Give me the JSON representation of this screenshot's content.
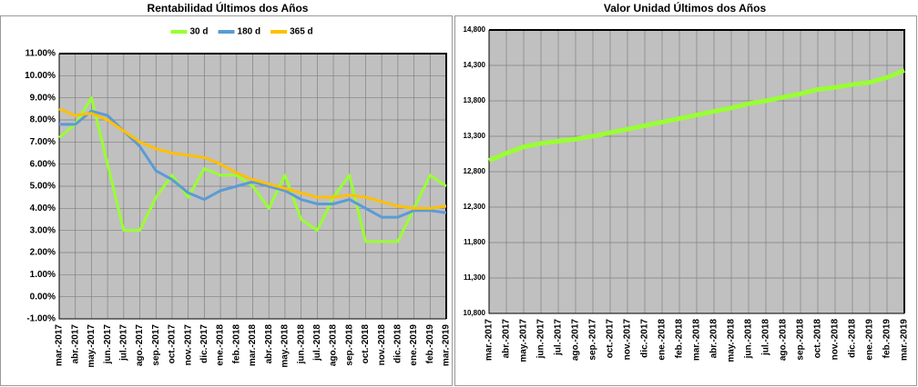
{
  "chart_data": [
    {
      "type": "line",
      "title": "Rentabilidad Últimos dos Años",
      "categories": [
        "mar.-2017",
        "abr.-2017",
        "may.-2017",
        "jun.-2017",
        "jul.-2017",
        "ago.-2017",
        "sep.-2017",
        "oct.-2017",
        "nov.-2017",
        "dic.-2017",
        "ene.-2018",
        "feb.-2018",
        "mar.-2018",
        "abr.-2018",
        "may.-2018",
        "jun.-2018",
        "jul.-2018",
        "ago.-2018",
        "sep.-2018",
        "oct.-2018",
        "nov.-2018",
        "dic.-2018",
        "ene.-2019",
        "feb.-2019",
        "mar.-2019"
      ],
      "series": [
        {
          "name": "30 d",
          "color": "#99ff33",
          "values": [
            7.2,
            7.8,
            9.0,
            6.0,
            3.0,
            3.0,
            4.5,
            5.5,
            4.5,
            5.8,
            5.5,
            5.5,
            5.0,
            4.0,
            5.5,
            3.5,
            3.0,
            4.5,
            5.5,
            2.5,
            2.5,
            2.5,
            4.0,
            5.5,
            5.0
          ]
        },
        {
          "name": "180 d",
          "color": "#5b9bd5",
          "values": [
            7.8,
            7.8,
            8.4,
            8.2,
            7.5,
            6.8,
            5.7,
            5.3,
            4.7,
            4.4,
            4.8,
            5.0,
            5.2,
            5.0,
            4.8,
            4.4,
            4.2,
            4.2,
            4.4,
            4.0,
            3.6,
            3.6,
            3.9,
            3.9,
            3.8
          ]
        },
        {
          "name": "365 d",
          "color": "#ffc000",
          "values": [
            8.5,
            8.2,
            8.3,
            8.0,
            7.5,
            7.0,
            6.7,
            6.5,
            6.4,
            6.3,
            6.0,
            5.6,
            5.3,
            5.1,
            4.9,
            4.7,
            4.5,
            4.5,
            4.6,
            4.5,
            4.3,
            4.1,
            4.0,
            4.0,
            4.1
          ]
        }
      ],
      "ylim": [
        -1,
        11
      ],
      "yticks": [
        {
          "value": -1,
          "label": "-1.00%"
        },
        {
          "value": 0,
          "label": "0.00%"
        },
        {
          "value": 1,
          "label": "1.00%"
        },
        {
          "value": 2,
          "label": "2.00%"
        },
        {
          "value": 3,
          "label": "3.00%"
        },
        {
          "value": 4,
          "label": "4.00%"
        },
        {
          "value": 5,
          "label": "5.00%"
        },
        {
          "value": 6,
          "label": "6.00%"
        },
        {
          "value": 7,
          "label": "7.00%"
        },
        {
          "value": 8,
          "label": "8.00%"
        },
        {
          "value": 9,
          "label": "9.00%"
        },
        {
          "value": 10,
          "label": "10.00%"
        },
        {
          "value": 11,
          "label": "11.00%"
        }
      ],
      "grid": true,
      "legend": "top"
    },
    {
      "type": "line",
      "title": "Valor Unidad Últimos dos Años",
      "categories": [
        "mar.-2017",
        "abr.-2017",
        "may.-2017",
        "jun.-2017",
        "jul.-2017",
        "ago.-2017",
        "sep.-2017",
        "oct.-2017",
        "nov.-2017",
        "dic.-2017",
        "ene.-2018",
        "feb.-2018",
        "mar.-2018",
        "abr.-2018",
        "may.-2018",
        "jun.-2018",
        "jul.-2018",
        "ago.-2018",
        "sep.-2018",
        "oct.-2018",
        "nov.-2018",
        "dic.-2018",
        "ene.-2019",
        "feb.-2019",
        "mar.-2019"
      ],
      "series": [
        {
          "color": "#99ff33",
          "values": [
            12960,
            13060,
            13150,
            13200,
            13230,
            13260,
            13300,
            13350,
            13400,
            13450,
            13500,
            13550,
            13600,
            13650,
            13700,
            13760,
            13800,
            13850,
            13900,
            13960,
            13990,
            14030,
            14060,
            14130,
            14230
          ]
        }
      ],
      "ylim": [
        10800,
        14800
      ],
      "yticks": [
        {
          "value": 10800,
          "label": "10,800"
        },
        {
          "value": 11300,
          "label": "11,300"
        },
        {
          "value": 11800,
          "label": "11,800"
        },
        {
          "value": 12300,
          "label": "12,300"
        },
        {
          "value": 12800,
          "label": "12,800"
        },
        {
          "value": 13300,
          "label": "13,300"
        },
        {
          "value": 13800,
          "label": "13,800"
        },
        {
          "value": 14300,
          "label": "14,300"
        },
        {
          "value": 14800,
          "label": "14,800"
        }
      ],
      "grid": true
    }
  ]
}
